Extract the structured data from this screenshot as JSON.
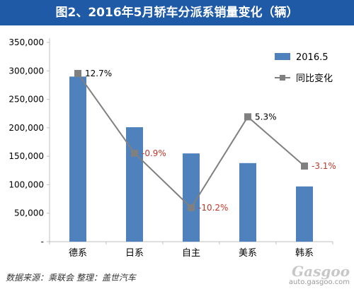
{
  "title": "图2、2016年5月轿车分派系销量变化（辆）",
  "source_note": "数据来源：乘联会  整理：盖世汽车",
  "watermark": {
    "logo": "Gasgoo",
    "url": "auto.gasgoo.com"
  },
  "colors": {
    "bar": "#4f81bd",
    "line": "#808080",
    "marker": "#808080",
    "title_bg": "#1f5aa6",
    "negative_label": "#c0392b",
    "axis": "#bfbfbf"
  },
  "chart_data": {
    "type": "bar",
    "categories": [
      "德系",
      "日系",
      "自主",
      "美系",
      "韩系"
    ],
    "series": [
      {
        "name": "2016.5",
        "type": "bar",
        "axis": "left",
        "values": [
          290000,
          201000,
          155000,
          138000,
          97000
        ]
      },
      {
        "name": "同比变化",
        "type": "line",
        "axis": "secondary",
        "values": [
          12.7,
          -0.9,
          -10.2,
          5.3,
          -3.1
        ],
        "labels": [
          "12.7%",
          "-0.9%",
          "-10.2%",
          "5.3%",
          "-3.1%"
        ]
      }
    ],
    "ylim": [
      0,
      350000
    ],
    "yticks": [
      "-",
      "50,000",
      "100,000",
      "150,000",
      "200,000",
      "250,000",
      "300,000",
      "350,000"
    ],
    "secondary_ylim": [
      -16,
      18
    ],
    "grid": false,
    "legend_position": "top-right"
  }
}
